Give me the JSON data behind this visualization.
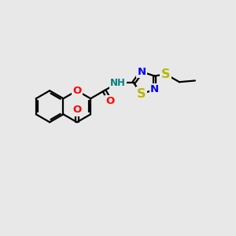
{
  "bg_color": "#e8e8e8",
  "bond_color": "#000000",
  "bond_width": 1.6,
  "dbo": 0.07,
  "atom_colors": {
    "O": "#ff0000",
    "N": "#0000ff",
    "S": "#b8b800",
    "NH": "#008080"
  },
  "fs": 9.5,
  "figsize": [
    3.0,
    3.0
  ],
  "dpi": 100,
  "s": 0.68
}
